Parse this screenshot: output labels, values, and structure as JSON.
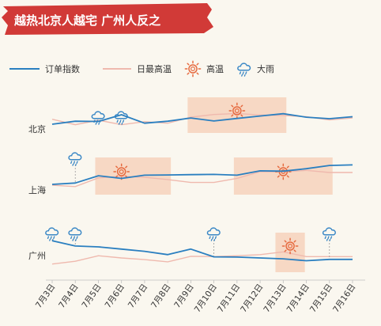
{
  "title": "越热北京人越宅 广州人反之",
  "legend": {
    "order_index": "订单指数",
    "max_temp": "日最高温",
    "hot": "高温",
    "rain": "大雨"
  },
  "colors": {
    "banner": "#d13a37",
    "order_line": "#2a7fc0",
    "temp_line": "#efb9ae",
    "hot_band": "#f6cdb6",
    "sun": "#e66a3f",
    "cloud": "#3b88c6"
  },
  "chart_data": {
    "type": "line",
    "title": "越热北京人越宅 广州人反之",
    "x": [
      "7月3日",
      "7月4日",
      "7月5日",
      "7月6日",
      "7月7日",
      "7月8日",
      "7月9日",
      "7月10日",
      "7月11日",
      "7月12日",
      "7月13日",
      "7月14日",
      "7月15日",
      "7月16日"
    ],
    "series_names": [
      "订单指数",
      "日最高温"
    ],
    "panels": [
      {
        "city": "北京",
        "order_index": [
          60,
          72,
          71,
          98,
          64,
          72,
          85,
          73,
          83,
          93,
          102,
          88,
          82,
          90
        ],
        "max_temp": [
          80,
          58,
          76,
          58,
          70,
          64,
          88,
          99,
          103,
          97,
          95,
          90,
          77,
          85
        ],
        "hot_ranges": [
          [
            6,
            10
          ]
        ],
        "sun_at": [
          8
        ],
        "rain_at": [
          2,
          3
        ]
      },
      {
        "city": "上海",
        "order_index": [
          38,
          43,
          70,
          60,
          72,
          73,
          74,
          75,
          72,
          88,
          87,
          96,
          108,
          110
        ],
        "max_temp": [
          35,
          30,
          62,
          68,
          64,
          56,
          45,
          45,
          60,
          85,
          84,
          90,
          82,
          82
        ],
        "hot_ranges": [
          [
            2,
            5
          ],
          [
            8,
            12
          ]
        ],
        "sun_at": [
          3,
          10
        ],
        "rain_at": [
          1
        ]
      },
      {
        "city": "广州",
        "order_index": [
          102,
          83,
          80,
          72,
          64,
          52,
          72,
          44,
          43,
          40,
          37,
          30,
          35,
          35
        ],
        "max_temp": [
          18,
          28,
          48,
          40,
          34,
          26,
          46,
          45,
          48,
          52,
          62,
          45,
          45,
          45
        ],
        "hot_ranges": [
          [
            9.8,
            10.8
          ]
        ],
        "sun_at": [
          10.3
        ],
        "rain_at": [
          0,
          1,
          7,
          12
        ]
      }
    ]
  }
}
